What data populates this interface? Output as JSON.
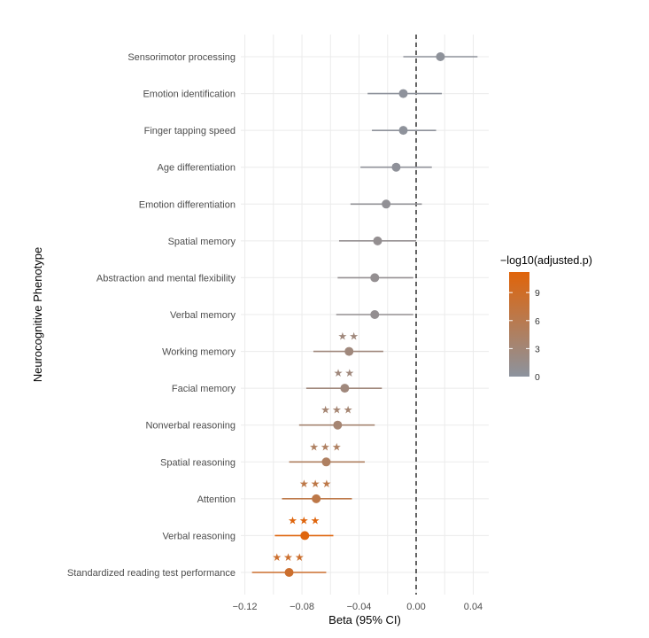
{
  "chart_data": {
    "type": "scatter",
    "subtype": "forest-plot",
    "title": "",
    "xlabel": "Beta (95% CI)",
    "ylabel": "Neurocognitive Phenotype",
    "xlim": [
      -0.122,
      0.052
    ],
    "x_ticks": [
      -0.12,
      -0.08,
      -0.04,
      0.0,
      0.04
    ],
    "x_tick_labels": [
      "−0.12",
      "−0.08",
      "−0.04",
      "0.00",
      "0.04"
    ],
    "x_minor_gridlines": [
      -0.1,
      -0.06,
      -0.02,
      0.02
    ],
    "reference_line": 0.0,
    "grid": true,
    "legend": {
      "title": "−log10(adjusted.p)",
      "placement": "right",
      "type": "colorbar",
      "range": [
        0,
        11.2
      ],
      "ticks": [
        0,
        3,
        6,
        9
      ],
      "tick_labels": [
        "0",
        "3",
        "6",
        "9"
      ],
      "color_low": "#8C939E",
      "color_high": "#E0640A"
    },
    "rows": [
      {
        "label": "Sensorimotor processing",
        "beta": 0.017,
        "ci_low": -0.009,
        "ci_high": 0.043,
        "neglog10p": 0.3,
        "stars": ""
      },
      {
        "label": "Emotion identification",
        "beta": -0.009,
        "ci_low": -0.034,
        "ci_high": 0.018,
        "neglog10p": 0.2,
        "stars": ""
      },
      {
        "label": "Finger tapping speed",
        "beta": -0.009,
        "ci_low": -0.031,
        "ci_high": 0.014,
        "neglog10p": 0.2,
        "stars": ""
      },
      {
        "label": "Age differentiation",
        "beta": -0.014,
        "ci_low": -0.039,
        "ci_high": 0.011,
        "neglog10p": 0.4,
        "stars": ""
      },
      {
        "label": "Emotion differentiation",
        "beta": -0.021,
        "ci_low": -0.046,
        "ci_high": 0.004,
        "neglog10p": 0.7,
        "stars": ""
      },
      {
        "label": "Spatial memory",
        "beta": -0.027,
        "ci_low": -0.054,
        "ci_high": 0.0,
        "neglog10p": 1.0,
        "stars": ""
      },
      {
        "label": "Abstraction and mental flexibility",
        "beta": -0.029,
        "ci_low": -0.055,
        "ci_high": -0.002,
        "neglog10p": 1.0,
        "stars": ""
      },
      {
        "label": "Verbal memory",
        "beta": -0.029,
        "ci_low": -0.056,
        "ci_high": -0.002,
        "neglog10p": 1.0,
        "stars": ""
      },
      {
        "label": "Working memory",
        "beta": -0.047,
        "ci_low": -0.072,
        "ci_high": -0.023,
        "neglog10p": 2.6,
        "stars": "**"
      },
      {
        "label": "Facial memory",
        "beta": -0.05,
        "ci_low": -0.077,
        "ci_high": -0.024,
        "neglog10p": 2.6,
        "stars": "**"
      },
      {
        "label": "Nonverbal reasoning",
        "beta": -0.055,
        "ci_low": -0.082,
        "ci_high": -0.029,
        "neglog10p": 3.3,
        "stars": "***"
      },
      {
        "label": "Spatial reasoning",
        "beta": -0.063,
        "ci_low": -0.089,
        "ci_high": -0.036,
        "neglog10p": 4.6,
        "stars": "***"
      },
      {
        "label": "Attention",
        "beta": -0.07,
        "ci_low": -0.094,
        "ci_high": -0.045,
        "neglog10p": 6.5,
        "stars": "***"
      },
      {
        "label": "Verbal reasoning",
        "beta": -0.078,
        "ci_low": -0.099,
        "ci_high": -0.058,
        "neglog10p": 11.0,
        "stars": "***"
      },
      {
        "label": "Standardized reading test performance",
        "beta": -0.089,
        "ci_low": -0.115,
        "ci_high": -0.063,
        "neglog10p": 8.5,
        "stars": "***"
      }
    ]
  }
}
